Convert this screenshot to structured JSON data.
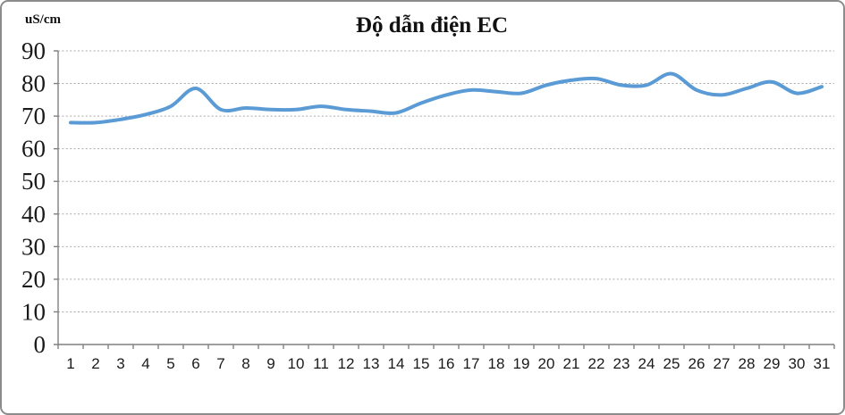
{
  "chart": {
    "title": "Độ dẫn điện EC",
    "unit_label": "uS/cm"
  },
  "chart_data": {
    "type": "line",
    "title": "Độ dẫn điện EC",
    "xlabel": "",
    "ylabel": "uS/cm",
    "legend": "none",
    "grid": "horizontal-dashed",
    "smooth": true,
    "categories": [
      1,
      2,
      3,
      4,
      5,
      6,
      7,
      8,
      9,
      10,
      11,
      12,
      13,
      14,
      15,
      16,
      17,
      18,
      19,
      20,
      21,
      22,
      23,
      24,
      25,
      26,
      27,
      28,
      29,
      30,
      31
    ],
    "series": [
      {
        "name": "EC",
        "color": "#5B9BD5",
        "values": [
          68,
          68,
          69,
          70.5,
          73,
          78.5,
          72,
          72.5,
          72,
          72,
          73,
          72,
          71.5,
          71,
          74,
          76.5,
          78,
          77.5,
          77,
          79.5,
          81,
          81.5,
          79.5,
          79.5,
          83,
          78,
          76.5,
          78.5,
          80.5,
          77,
          79
        ]
      }
    ],
    "ylim": [
      0,
      90
    ],
    "ytick_step": 10,
    "yticks": [
      0,
      10,
      20,
      30,
      40,
      50,
      60,
      70,
      80,
      90
    ],
    "axis_color": "#808080",
    "gridline_color": "#ababab",
    "text_color": "#1a1a1a"
  }
}
